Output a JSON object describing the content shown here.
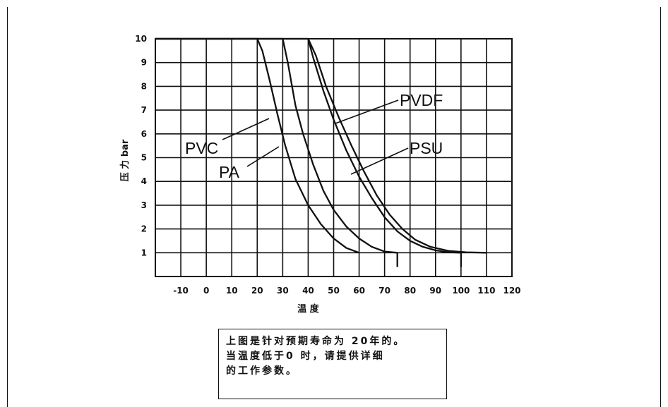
{
  "chart_data": {
    "type": "line",
    "title": "",
    "xlabel": "温 度",
    "ylabel": "压 力 bar",
    "xlim": [
      -20,
      120
    ],
    "ylim": [
      0,
      10
    ],
    "grid": true,
    "x_tick_labels": [
      "-10",
      "0",
      "10",
      "20",
      "30",
      "40",
      "50",
      "60",
      "70",
      "80",
      "90",
      "100",
      "110",
      "120"
    ],
    "y_tick_labels": [
      "1",
      "2",
      "3",
      "4",
      "5",
      "6",
      "7",
      "8",
      "9",
      "10"
    ],
    "series": [
      {
        "name": "PVC",
        "points": [
          [
            -20,
            10
          ],
          [
            20,
            10
          ],
          [
            22,
            9.5
          ],
          [
            25,
            8.2
          ],
          [
            28,
            6.8
          ],
          [
            31,
            5.5
          ],
          [
            35,
            4.1
          ],
          [
            40,
            3.0
          ],
          [
            45,
            2.2
          ],
          [
            50,
            1.6
          ],
          [
            55,
            1.2
          ],
          [
            60,
            1.0
          ]
        ]
      },
      {
        "name": "PA",
        "points": [
          [
            -20,
            10
          ],
          [
            30,
            10
          ],
          [
            32,
            9.0
          ],
          [
            35,
            7.2
          ],
          [
            38,
            6.0
          ],
          [
            42,
            4.7
          ],
          [
            46,
            3.6
          ],
          [
            50,
            2.8
          ],
          [
            55,
            2.1
          ],
          [
            60,
            1.6
          ],
          [
            65,
            1.25
          ],
          [
            70,
            1.05
          ],
          [
            75,
            1.0
          ],
          [
            75,
            0.4
          ]
        ]
      },
      {
        "name": "PSU",
        "points": [
          [
            -20,
            10
          ],
          [
            40,
            10
          ],
          [
            42,
            9.2
          ],
          [
            46,
            7.8
          ],
          [
            50,
            6.6
          ],
          [
            55,
            5.3
          ],
          [
            60,
            4.2
          ],
          [
            65,
            3.3
          ],
          [
            70,
            2.5
          ],
          [
            75,
            1.9
          ],
          [
            80,
            1.5
          ],
          [
            85,
            1.25
          ],
          [
            90,
            1.1
          ],
          [
            95,
            1.02
          ],
          [
            100,
            1.0
          ],
          [
            100,
            0.4
          ]
        ]
      },
      {
        "name": "PVDF",
        "points": [
          [
            -20,
            10
          ],
          [
            40,
            10
          ],
          [
            43,
            9.3
          ],
          [
            47,
            8.0
          ],
          [
            52,
            6.7
          ],
          [
            57,
            5.5
          ],
          [
            62,
            4.4
          ],
          [
            67,
            3.4
          ],
          [
            72,
            2.6
          ],
          [
            77,
            2.0
          ],
          [
            82,
            1.55
          ],
          [
            88,
            1.25
          ],
          [
            95,
            1.08
          ],
          [
            102,
            1.02
          ],
          [
            110,
            1.0
          ]
        ]
      }
    ],
    "series_labels": [
      "PVC",
      "PA",
      "PSU",
      "PVDF"
    ]
  },
  "note": {
    "lines": [
      "上图是针对预期寿命为 20年的。",
      "当温度低于0  时，请提供详细",
      "的工作参数。"
    ]
  }
}
